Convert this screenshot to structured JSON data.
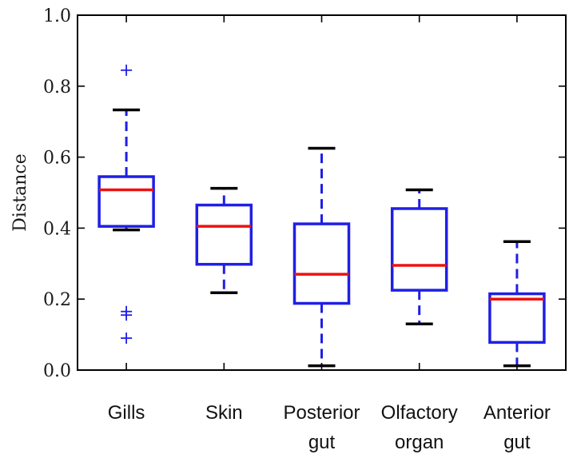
{
  "chart_data": {
    "type": "box",
    "title": "",
    "ylabel": "Distance",
    "xlabel": "",
    "ylim": [
      0.0,
      1.0
    ],
    "yticks": [
      "0.0",
      "0.2",
      "0.4",
      "0.6",
      "0.8",
      "1.0"
    ],
    "grid": false,
    "categories": [
      [
        "Gills"
      ],
      [
        "Skin"
      ],
      [
        "Posterior",
        "gut"
      ],
      [
        "Olfactory",
        "organ"
      ],
      [
        "Anterior",
        "gut"
      ]
    ],
    "boxes": [
      {
        "whisker_low": 0.395,
        "q1": 0.405,
        "median": 0.508,
        "q3": 0.545,
        "whisker_high": 0.733,
        "outliers": [
          0.845,
          0.165,
          0.155,
          0.09
        ]
      },
      {
        "whisker_low": 0.218,
        "q1": 0.298,
        "median": 0.405,
        "q3": 0.465,
        "whisker_high": 0.512,
        "outliers": []
      },
      {
        "whisker_low": 0.012,
        "q1": 0.188,
        "median": 0.27,
        "q3": 0.412,
        "whisker_high": 0.625,
        "outliers": []
      },
      {
        "whisker_low": 0.13,
        "q1": 0.225,
        "median": 0.295,
        "q3": 0.455,
        "whisker_high": 0.508,
        "outliers": []
      },
      {
        "whisker_low": 0.012,
        "q1": 0.078,
        "median": 0.2,
        "q3": 0.215,
        "whisker_high": 0.362,
        "outliers": []
      }
    ],
    "colors": {
      "box": "#1f1fe6",
      "median": "#ee1111",
      "cap": "#000000",
      "whisker": "#1f1fe6",
      "outlier": "#1f1fe6",
      "axes": "#000000"
    }
  }
}
